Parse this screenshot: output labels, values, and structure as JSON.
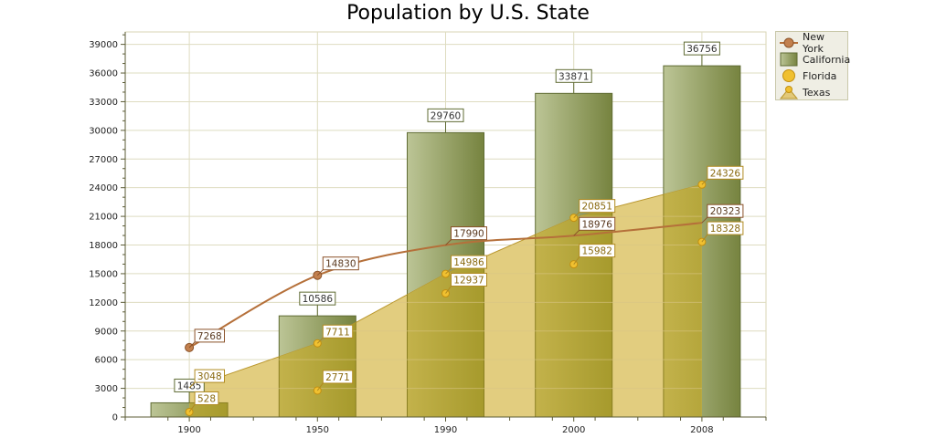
{
  "chart_data": {
    "type": "bar",
    "title": "Population by U.S. State",
    "xlabel": "",
    "ylabel": "",
    "categories": [
      "1900",
      "1950",
      "1990",
      "2000",
      "2008"
    ],
    "ylim": [
      0,
      40000
    ],
    "yticks": [
      0,
      3000,
      6000,
      9000,
      12000,
      15000,
      18000,
      21000,
      24000,
      27000,
      30000,
      33000,
      36000,
      39000
    ],
    "grid": true,
    "legend_position": "top-right",
    "series": [
      {
        "name": "New York",
        "type": "line",
        "color": "#b5703a",
        "values": [
          7268,
          14830,
          17990,
          18976,
          20323
        ]
      },
      {
        "name": "California",
        "type": "bar",
        "color": "#8a9a5b",
        "values": [
          1485,
          10586,
          29760,
          33871,
          36756
        ]
      },
      {
        "name": "Florida",
        "type": "point",
        "color": "#e6b422",
        "values": [
          528,
          2771,
          12937,
          15982,
          18328
        ]
      },
      {
        "name": "Texas",
        "type": "area",
        "color": "#e2c97a",
        "values": [
          3048,
          7711,
          14986,
          20851,
          24326
        ]
      }
    ]
  },
  "legend": {
    "items": [
      {
        "label": "New York",
        "icon": "line-circle-marker-icon"
      },
      {
        "label": "California",
        "icon": "bar-swatch-icon"
      },
      {
        "label": "Florida",
        "icon": "circle-marker-icon"
      },
      {
        "label": "Texas",
        "icon": "area-triangle-icon"
      }
    ]
  }
}
